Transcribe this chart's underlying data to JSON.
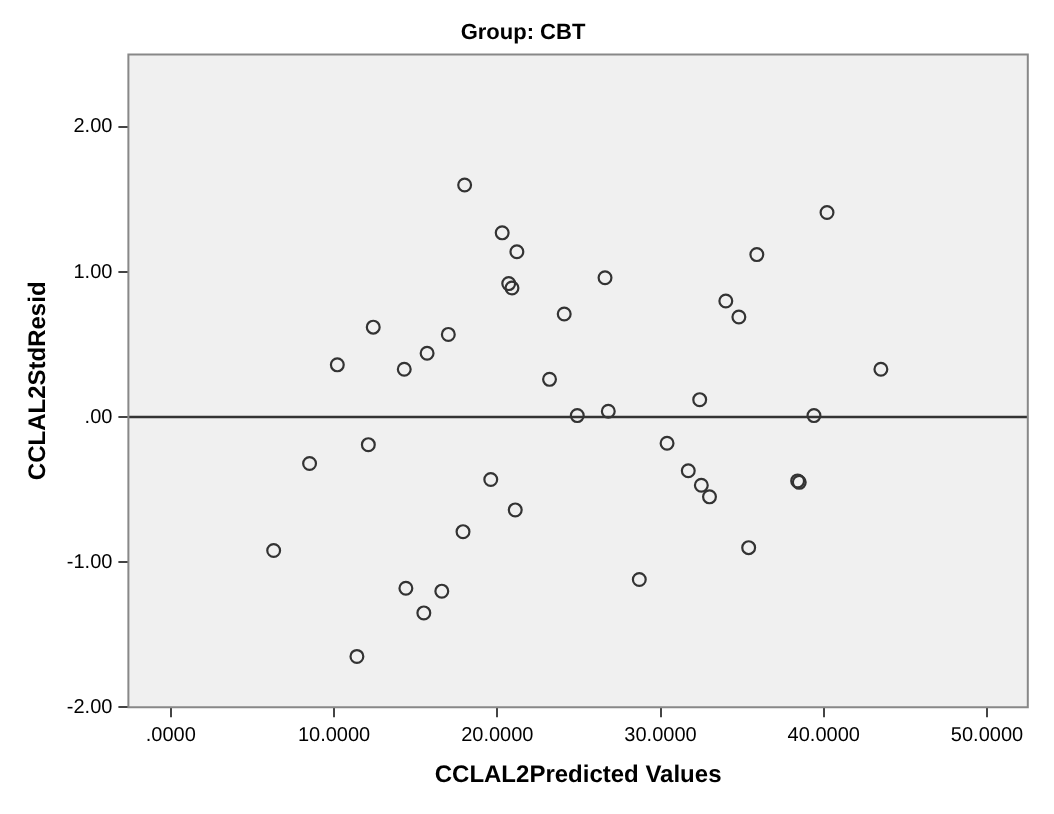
{
  "chart_data": {
    "type": "scatter",
    "title": "Group: CBT",
    "xlabel": "CCLAL2Predicted Values",
    "ylabel": "CCLAL2StdResid",
    "x": [
      6.3,
      8.5,
      10.2,
      11.4,
      12.1,
      12.4,
      14.3,
      14.4,
      15.5,
      15.7,
      16.6,
      17.0,
      18.0,
      17.9,
      19.6,
      20.3,
      20.7,
      20.9,
      21.1,
      21.2,
      23.2,
      24.1,
      24.9,
      26.6,
      26.8,
      28.7,
      30.4,
      31.7,
      32.4,
      32.5,
      33.0,
      34.0,
      34.8,
      35.4,
      35.9,
      38.4,
      38.5,
      39.4,
      40.2,
      43.5
    ],
    "series": [
      {
        "color": "#333333",
        "values": [
          -0.92,
          -0.32,
          0.36,
          -1.65,
          -0.19,
          0.62,
          0.33,
          -1.18,
          -1.35,
          0.44,
          -1.2,
          0.57,
          1.6,
          -0.79,
          -0.43,
          1.27,
          0.92,
          0.89,
          -0.64,
          1.14,
          0.26,
          0.71,
          0.01,
          0.96,
          0.04,
          -1.12,
          -0.18,
          -0.37,
          0.12,
          -0.47,
          -0.55,
          0.8,
          0.69,
          -0.9,
          1.12,
          -0.44,
          -0.45,
          0.01,
          1.41,
          0.33
        ]
      }
    ],
    "xlim": [
      -2.6,
      52.5
    ],
    "ylim": [
      -2,
      2.5
    ],
    "xticks": [
      {
        "value": 0,
        "label": ".0000"
      },
      {
        "value": 10,
        "label": "10.0000"
      },
      {
        "value": 20,
        "label": "20.0000"
      },
      {
        "value": 30,
        "label": "30.0000"
      },
      {
        "value": 40,
        "label": "40.0000"
      },
      {
        "value": 50,
        "label": "50.0000"
      }
    ],
    "yticks": [
      {
        "value": -2,
        "label": "-2.00"
      },
      {
        "value": -1,
        "label": "-1.00"
      },
      {
        "value": 0,
        "label": ".00"
      },
      {
        "value": 1,
        "label": "1.00"
      },
      {
        "value": 2,
        "label": "2.00"
      }
    ],
    "ref_lines": [
      {
        "axis": "y",
        "value": 0,
        "color": "#333333"
      }
    ],
    "marker": "circle",
    "grid": false,
    "legend": false
  }
}
